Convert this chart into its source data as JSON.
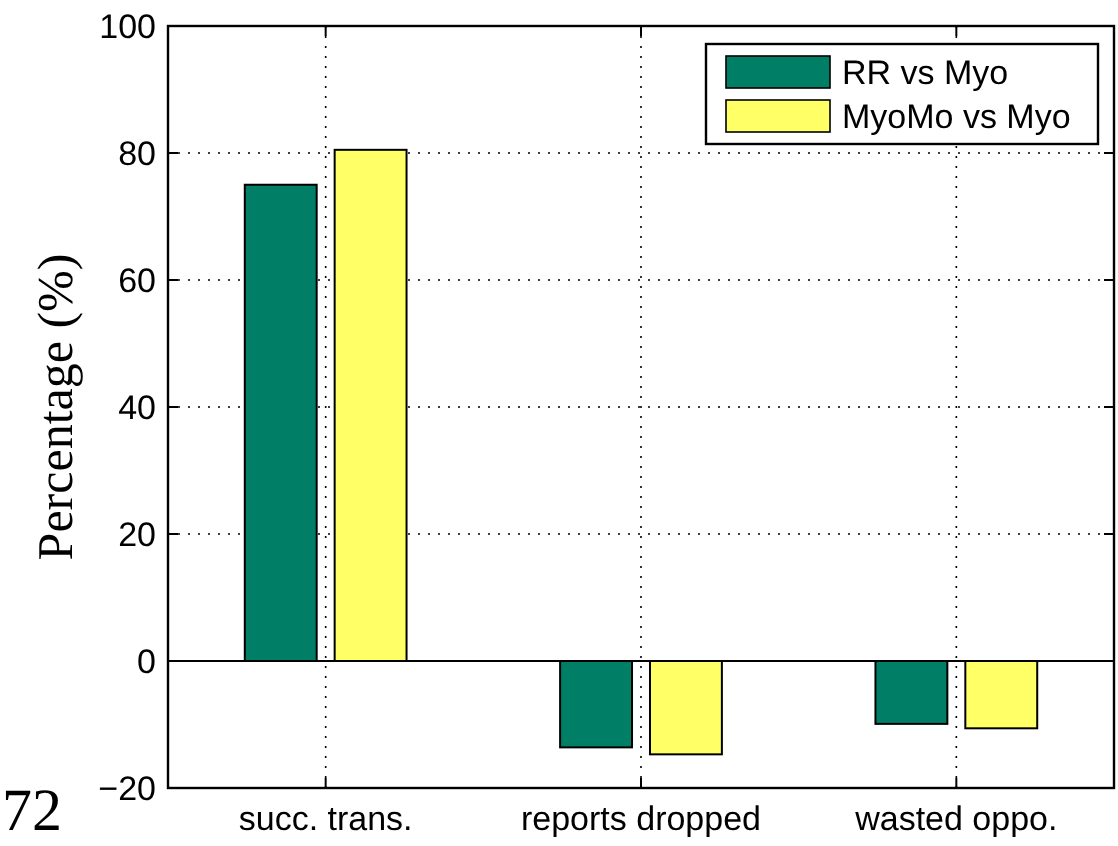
{
  "chart_data": {
    "type": "bar",
    "ylabel": "Percentage (%)",
    "categories": [
      "succ. trans.",
      "reports dropped",
      "wasted oppo."
    ],
    "series": [
      {
        "name": "RR vs Myo",
        "color": "#007f66",
        "values": [
          75,
          -13.6,
          -9.9
        ]
      },
      {
        "name": "MyoMo vs Myo",
        "color": "#ffff66",
        "values": [
          80.5,
          -14.7,
          -10.6
        ]
      }
    ],
    "ylim": [
      -20,
      100
    ],
    "yticks": [
      -20,
      0,
      20,
      40,
      60,
      80,
      100
    ],
    "grid": true,
    "legend": "top right",
    "annotations": [
      "72"
    ]
  }
}
